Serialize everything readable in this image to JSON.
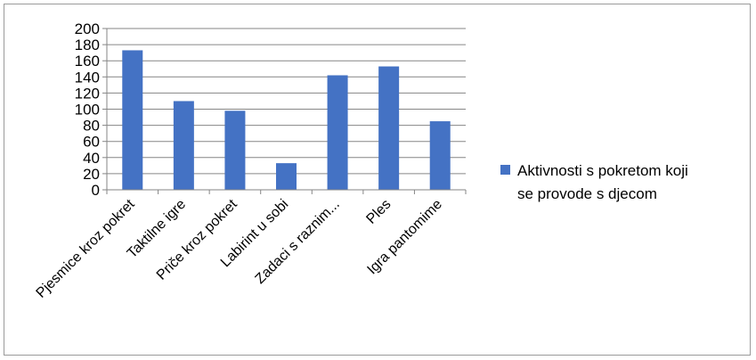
{
  "chart_data": {
    "type": "bar",
    "categories": [
      "Pjesmice kroz pokret",
      "Taktilne igre",
      "Priče kroz pokret",
      "Labirint u sobi",
      "Zadaci s raznim...",
      "Ples",
      "Igra pantomime"
    ],
    "series": [
      {
        "name": "Aktivnosti s pokretom koji se provode s djecom",
        "values": [
          173,
          110,
          98,
          33,
          142,
          153,
          85
        ],
        "color": "#4472c4"
      }
    ],
    "ylim": [
      0,
      200
    ],
    "yticks": [
      0,
      20,
      40,
      60,
      80,
      100,
      120,
      140,
      160,
      180,
      200
    ],
    "grid": true,
    "legend_position": "right",
    "legend_lines": [
      "Aktivnosti s pokretom koji",
      "se provode s djecom"
    ]
  }
}
